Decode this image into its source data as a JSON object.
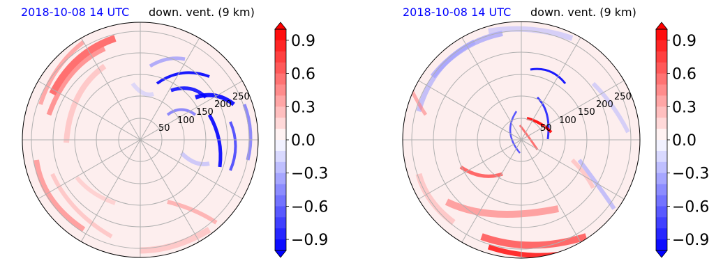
{
  "chart_data": [
    {
      "type": "heatmap",
      "title_date": "2018-10-08 14 UTC",
      "title_var": "down. vent. (9 km)",
      "projection": "polar",
      "radial_ticks": [
        "50",
        "100",
        "150",
        "200",
        "250"
      ],
      "rmax": 270,
      "grid": true,
      "colormap": "bwr",
      "colorbar_ticks": [
        "0.9",
        "0.6",
        "0.3",
        "0.0",
        "−0.3",
        "−0.6",
        "−0.9"
      ],
      "colorbar_range": [
        -1.0,
        1.0
      ]
    },
    {
      "type": "heatmap",
      "title_date": "2018-10-08 14 UTC",
      "title_var": "down. vent. (9 km)",
      "projection": "polar",
      "radial_ticks": [
        "50",
        "100",
        "150",
        "200",
        "250"
      ],
      "rmax": 270,
      "grid": true,
      "colormap": "bwr",
      "colorbar_ticks": [
        "0.9",
        "0.6",
        "0.3",
        "0.0",
        "−0.3",
        "−0.6",
        "−0.9"
      ],
      "colorbar_range": [
        -1.0,
        1.0
      ]
    }
  ],
  "colors": {
    "positive": "#ff0000",
    "negative": "#0000ff",
    "neutral": "#ffffff",
    "title_date": "#0000ff",
    "grid": "#b0b0b0"
  }
}
